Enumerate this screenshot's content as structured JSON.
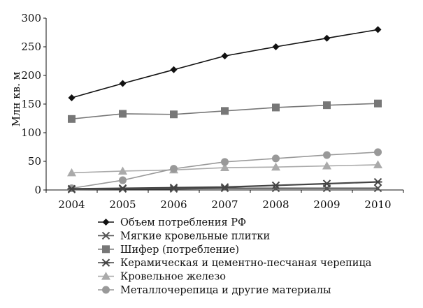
{
  "chart_data": {
    "type": "line",
    "title": "",
    "xlabel": "",
    "ylabel": "Млн кв. м",
    "ylim": [
      0,
      300
    ],
    "yticks": [
      0,
      50,
      100,
      150,
      200,
      250,
      300
    ],
    "categories": [
      "2004",
      "2005",
      "2006",
      "2007",
      "2008",
      "2009",
      "2010"
    ],
    "grid": false,
    "legend_position": "bottom",
    "series": [
      {
        "name": "Объем потребления РФ",
        "marker": "diamond",
        "color": "#111111",
        "values": [
          161,
          186,
          210,
          234,
          250,
          265,
          280
        ]
      },
      {
        "name": "Мягкие кровельные плитки",
        "marker": "x",
        "color": "#555555",
        "values": [
          1,
          2,
          2,
          3,
          3,
          3,
          3
        ]
      },
      {
        "name": "Шифер (потребление)",
        "marker": "square",
        "color": "#777777",
        "values": [
          124,
          133,
          132,
          138,
          144,
          148,
          151
        ]
      },
      {
        "name": "Керамическая и цементно-песчаная черепица",
        "marker": "star",
        "color": "#444444",
        "values": [
          2,
          3,
          4,
          5,
          8,
          11,
          14
        ]
      },
      {
        "name": "Кровельное железо",
        "marker": "triangle",
        "color": "#aaaaaa",
        "values": [
          30,
          33,
          35,
          39,
          40,
          42,
          44
        ]
      },
      {
        "name": "Металлочерепица и другие материалы",
        "marker": "circle",
        "color": "#999999",
        "values": [
          3,
          17,
          37,
          49,
          55,
          61,
          66
        ]
      }
    ]
  }
}
